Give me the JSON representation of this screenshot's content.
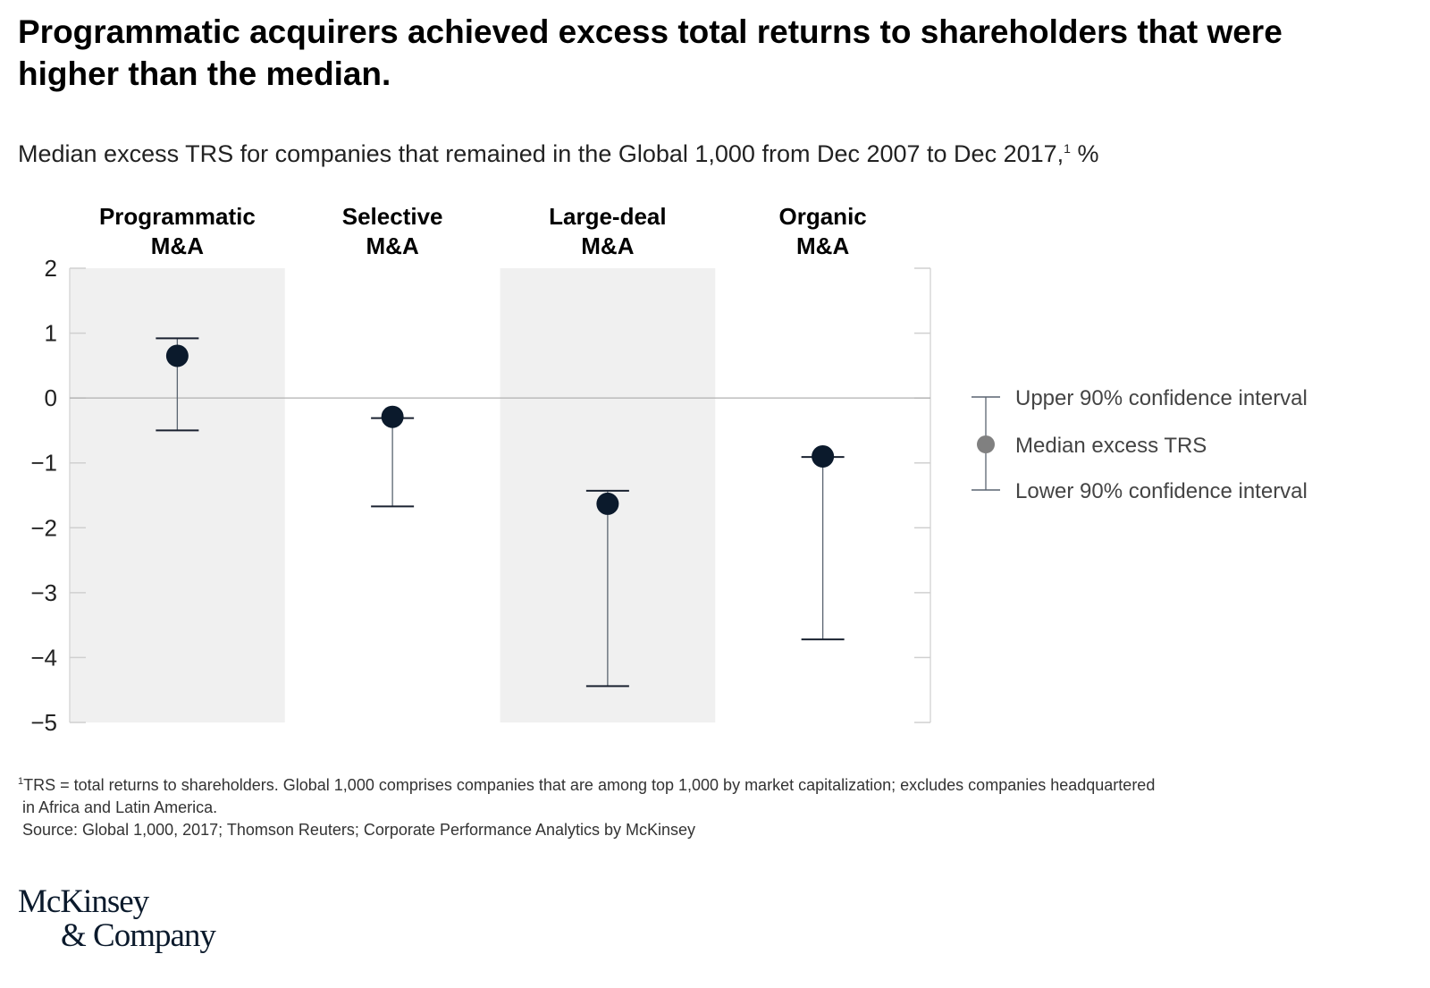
{
  "title": "Programmatic acquirers achieved excess total returns to shareholders that were higher than the median.",
  "subtitle": "Median excess TRS for companies that remained in the Global 1,000 from Dec 2007 to Dec 2017,",
  "subtitle_sup": "1",
  "subtitle_unit": " %",
  "chart_data": {
    "type": "errorbar",
    "title": "",
    "categories": [
      [
        "Programmatic",
        "M&A"
      ],
      [
        "Selective",
        "M&A"
      ],
      [
        "Large-deal",
        "M&A"
      ],
      [
        "Organic",
        "M&A"
      ]
    ],
    "median": [
      0.65,
      -0.29,
      -1.63,
      -0.9
    ],
    "upper": [
      0.92,
      -0.31,
      -1.43,
      -0.91
    ],
    "lower": [
      -0.5,
      -1.67,
      -4.44,
      -3.72
    ],
    "ylim": [
      -5,
      2
    ],
    "yticks": [
      "2",
      "1",
      "0",
      "−1",
      "−2",
      "−3",
      "−4",
      "−5"
    ],
    "ytick_values": [
      2,
      1,
      0,
      -1,
      -2,
      -3,
      -4,
      -5
    ],
    "legend": {
      "placement": "right",
      "upper": "Upper 90% confidence interval",
      "median": "Median excess TRS",
      "lower": "Lower 90% confidence interval"
    },
    "colors": {
      "marker": "#0b1a2c",
      "band": "#f0f0f0",
      "line": "#5a6470",
      "zero": "#b0b0b0",
      "legend_marker": "#808080"
    }
  },
  "footnote": {
    "sup": "1",
    "line1": "TRS = total returns to shareholders. Global 1,000 comprises companies that are among top 1,000 by market capitalization; excludes companies headquartered",
    "line2": " in Africa and Latin America.",
    "source": " Source: Global 1,000, 2017; Thomson Reuters; Corporate Performance Analytics by McKinsey"
  },
  "logo": {
    "line1": "McKinsey",
    "line2": "& Company"
  }
}
